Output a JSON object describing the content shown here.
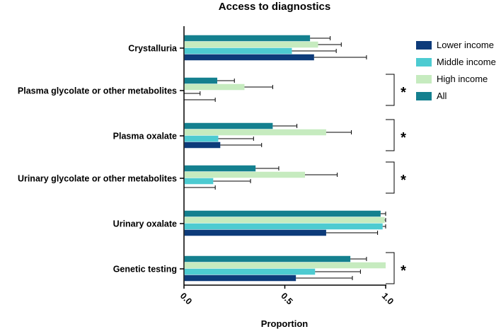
{
  "chart_data": {
    "type": "bar",
    "orientation": "horizontal",
    "title": "Access to diagnostics",
    "xlabel": "Proportion",
    "ylabel": "",
    "xlim": [
      0,
      1
    ],
    "xticks": [
      "0.0",
      "0.5",
      "1.0"
    ],
    "categories": [
      "Crystalluria",
      "Plasma glycolate or other metabolites",
      "Plasma oxalate",
      "Urinary glycolate or other metabolites",
      "Urinary oxalate",
      "Genetic testing"
    ],
    "series": [
      {
        "name": "Lower income",
        "color": "#0d3b7a",
        "values": [
          0.645,
          0.0,
          0.18,
          0.0,
          0.705,
          0.555
        ],
        "error_upper": [
          0.905,
          0.155,
          0.385,
          0.155,
          0.96,
          0.835
        ]
      },
      {
        "name": "Middle income",
        "color": "#4dcbd1",
        "values": [
          0.535,
          0.0,
          0.17,
          0.145,
          0.985,
          0.65
        ],
        "error_upper": [
          0.755,
          0.08,
          0.345,
          0.33,
          1.0,
          0.875
        ]
      },
      {
        "name": "High income",
        "color": "#c6ebbf",
        "values": [
          0.665,
          0.3,
          0.705,
          0.6,
          0.995,
          1.0
        ],
        "error_upper": [
          0.78,
          0.44,
          0.83,
          0.76,
          1.0,
          1.0
        ]
      },
      {
        "name": "All",
        "color": "#14808f",
        "values": [
          0.625,
          0.165,
          0.44,
          0.355,
          0.975,
          0.825
        ],
        "error_upper": [
          0.725,
          0.25,
          0.56,
          0.47,
          1.0,
          0.905
        ]
      }
    ],
    "significance": [
      {
        "category": "Plasma glycolate or other metabolites",
        "marker": "*"
      },
      {
        "category": "Plasma oxalate",
        "marker": "*"
      },
      {
        "category": "Urinary glycolate or other metabolites",
        "marker": "*"
      },
      {
        "category": "Genetic testing",
        "marker": "*"
      }
    ],
    "legend_position": "top-right",
    "grid": false
  }
}
